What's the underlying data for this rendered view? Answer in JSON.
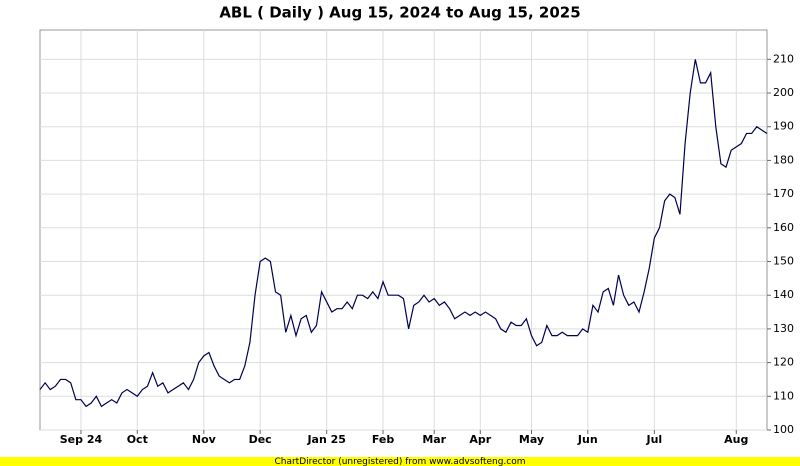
{
  "chart_data": {
    "type": "line",
    "title": "ABL ( Daily ) Aug 15, 2024 to Aug 15, 2025",
    "categories": [
      null,
      null,
      null,
      null,
      null,
      null,
      null,
      null,
      "Sep 24",
      null,
      null,
      null,
      null,
      null,
      null,
      null,
      null,
      null,
      null,
      "Oct",
      null,
      null,
      null,
      null,
      null,
      null,
      null,
      null,
      null,
      null,
      null,
      null,
      "Nov",
      null,
      null,
      null,
      null,
      null,
      null,
      null,
      null,
      null,
      null,
      "Dec",
      null,
      null,
      null,
      null,
      null,
      null,
      null,
      null,
      null,
      null,
      null,
      null,
      "Jan 25",
      null,
      null,
      null,
      null,
      null,
      null,
      null,
      null,
      null,
      null,
      "Feb",
      null,
      null,
      null,
      null,
      null,
      null,
      null,
      null,
      null,
      "Mar",
      null,
      null,
      null,
      null,
      null,
      null,
      null,
      null,
      "Apr",
      null,
      null,
      null,
      null,
      null,
      null,
      null,
      null,
      null,
      "May",
      null,
      null,
      null,
      null,
      null,
      null,
      null,
      null,
      null,
      null,
      "Jun",
      null,
      null,
      null,
      null,
      null,
      null,
      null,
      null,
      null,
      null,
      null,
      null,
      "Jul",
      null,
      null,
      null,
      null,
      null,
      null,
      null,
      null,
      null,
      null,
      null,
      null,
      null,
      null,
      null,
      "Aug",
      null,
      null,
      null,
      null,
      null,
      null
    ],
    "series": [
      {
        "color": "#000050",
        "values": [
          112,
          114,
          112,
          113,
          115,
          115,
          114,
          109,
          109,
          107,
          108,
          110,
          107,
          108,
          109,
          108,
          111,
          112,
          111,
          110,
          112,
          113,
          117,
          113,
          114,
          111,
          112,
          113,
          114,
          112,
          115,
          120,
          122,
          123,
          119,
          116,
          115,
          114,
          115,
          115,
          119,
          126,
          140,
          150,
          151,
          150,
          141,
          140,
          129,
          134,
          128,
          133,
          134,
          129,
          131,
          141,
          138,
          135,
          136,
          136,
          138,
          136,
          140,
          140,
          139,
          141,
          139,
          144,
          140,
          140,
          140,
          139,
          130,
          137,
          138,
          140,
          138,
          139,
          137,
          138,
          136,
          133,
          134,
          135,
          134,
          135,
          134,
          135,
          134,
          133,
          130,
          129,
          132,
          131,
          131,
          133,
          128,
          125,
          126,
          131,
          128,
          128,
          129,
          128,
          128,
          128,
          130,
          129,
          137,
          135,
          141,
          142,
          137,
          146,
          140,
          137,
          138,
          135,
          141,
          148,
          157,
          160,
          168,
          170,
          169,
          164,
          185,
          200,
          210,
          203,
          203,
          206,
          190,
          179,
          178,
          183,
          184,
          185,
          188,
          188,
          190,
          189,
          188
        ]
      }
    ],
    "ylim": [
      100,
      218.7
    ],
    "yticks": [
      100,
      110,
      120,
      130,
      140,
      150,
      160,
      170,
      180,
      190,
      200,
      210
    ],
    "grid": true
  },
  "footer": "ChartDirector (unregistered) from www.advsofteng.com"
}
